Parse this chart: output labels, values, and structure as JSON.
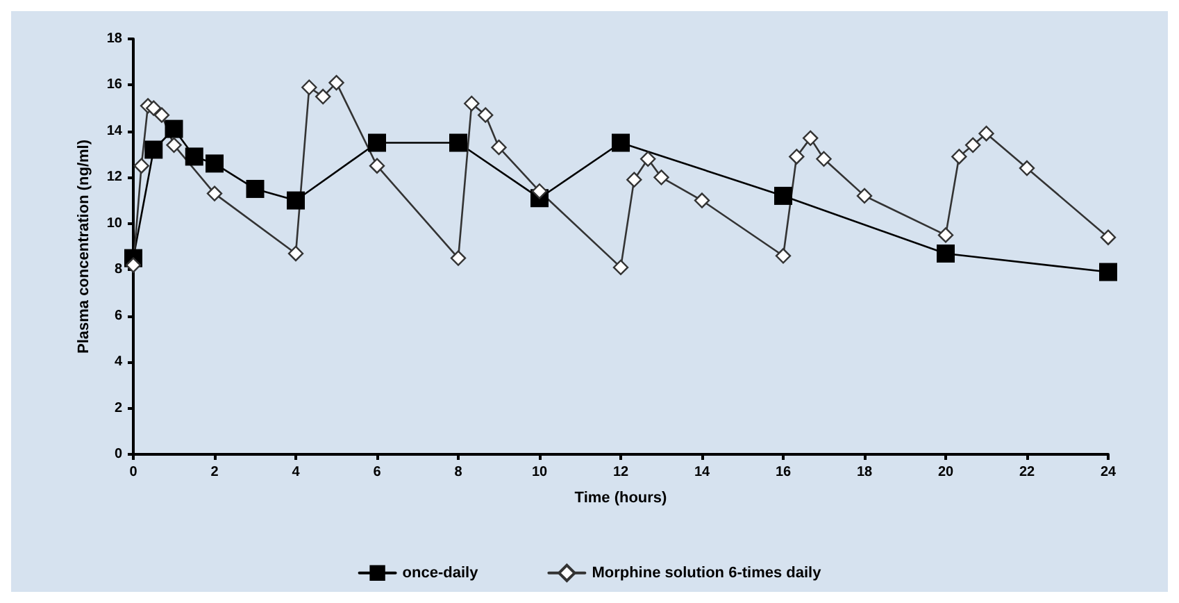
{
  "chart_data": {
    "type": "line",
    "xlabel": "Time (hours)",
    "ylabel": "Plasma concentration (ng/ml)",
    "xlim": [
      0,
      24
    ],
    "xticks": [
      0,
      2,
      4,
      6,
      8,
      10,
      12,
      14,
      16,
      18,
      20,
      22,
      24
    ],
    "ylim": [
      0,
      18
    ],
    "yticks": [
      0,
      2,
      4,
      6,
      8,
      10,
      12,
      14,
      16,
      18
    ],
    "grid": false,
    "legend": "bottom",
    "line_style": "solid",
    "series": [
      {
        "name": "once-daily",
        "color": "#000000",
        "marker": "square",
        "x": [
          0,
          0.5,
          1,
          1.5,
          2,
          3,
          4,
          6,
          8,
          10,
          12,
          16,
          20,
          24
        ],
        "values": [
          8.5,
          13.2,
          14.1,
          12.9,
          12.6,
          11.5,
          11.0,
          13.5,
          13.5,
          11.1,
          13.5,
          11.2,
          8.7,
          7.9
        ]
      },
      {
        "name": "Morphine solution 6-times daily",
        "color": "#333333",
        "marker": "diamond",
        "x": [
          0,
          0.2,
          0.36,
          0.5,
          0.7,
          1,
          2,
          4,
          4.33,
          4.67,
          5,
          6,
          8,
          8.33,
          8.67,
          9,
          10,
          12,
          12.33,
          12.67,
          13,
          14,
          16,
          16.33,
          16.67,
          17,
          18,
          20,
          20.33,
          20.67,
          21,
          22,
          24
        ],
        "values": [
          8.2,
          12.5,
          15.1,
          15.0,
          14.7,
          13.4,
          11.3,
          8.7,
          15.9,
          15.5,
          16.1,
          12.5,
          8.5,
          15.2,
          14.7,
          13.3,
          11.4,
          8.1,
          11.9,
          12.8,
          12.0,
          11.0,
          8.6,
          12.9,
          13.7,
          12.8,
          11.2,
          9.5,
          12.9,
          13.4,
          13.9,
          12.4,
          9.4
        ]
      }
    ]
  }
}
